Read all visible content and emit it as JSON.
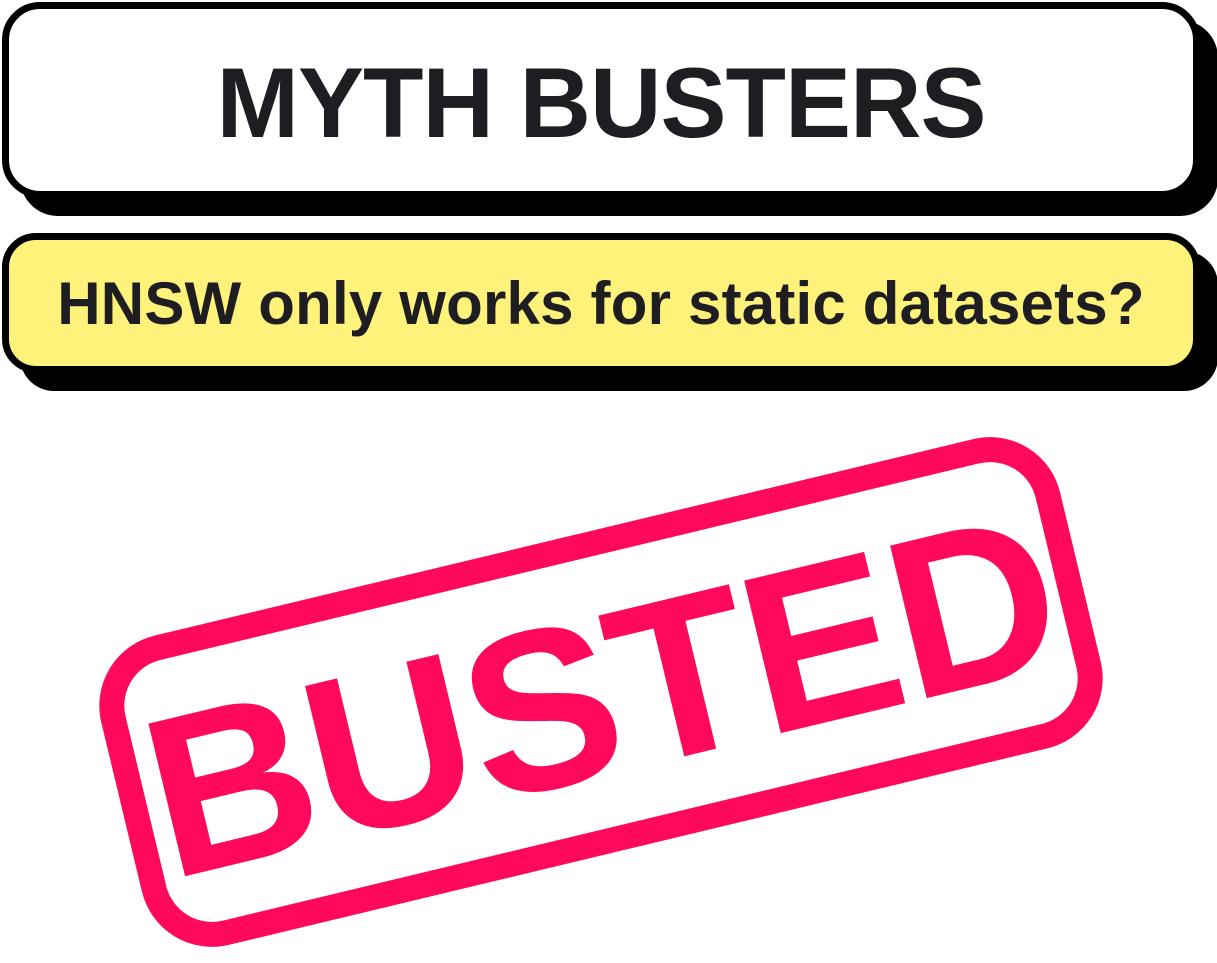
{
  "header": {
    "title": "MYTH BUSTERS"
  },
  "question": {
    "text": "HNSW only works for static datasets?"
  },
  "stamp": {
    "label": "BUSTED"
  },
  "colors": {
    "outline": "#000000",
    "title_background": "#ffffff",
    "question_background": "#fff27a",
    "text": "#1e1e22",
    "stamp": "#ff0a5a"
  }
}
